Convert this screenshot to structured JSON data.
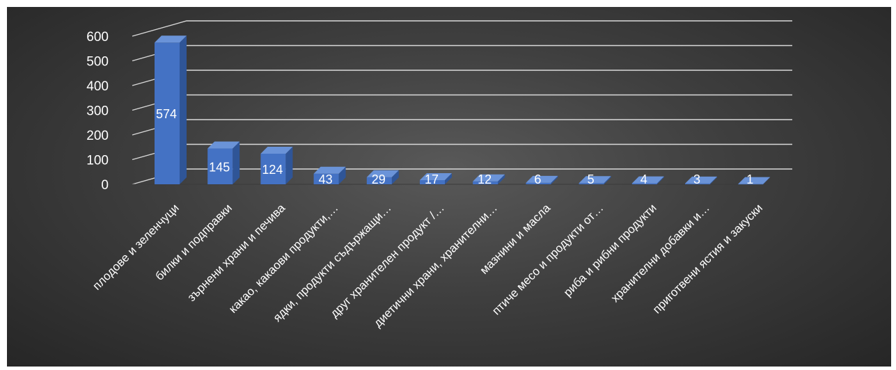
{
  "chart_data": {
    "type": "bar",
    "style": "3d-column",
    "categories": [
      "плодове и зеленчуци",
      "билки и подправки",
      "зърнени храни и печива",
      "какао, какаови продукти,…",
      "ядки, продукти съдържащи…",
      "друг хранителен продукт /…",
      "диетични храни, хранителни…",
      "мазнини и масла",
      "птиче месо и продукти от…",
      "риба и рибни продукти",
      "хранителни добавки и…",
      "приготвени ястия и закуски"
    ],
    "values": [
      574,
      145,
      124,
      43,
      29,
      17,
      12,
      6,
      5,
      4,
      3,
      1
    ],
    "ylim": [
      0,
      600
    ],
    "yticks": [
      0,
      100,
      200,
      300,
      400,
      500,
      600
    ],
    "grid": true,
    "legend": "none",
    "colors": {
      "bar_front": "#4472c4",
      "bar_side": "#2f5597",
      "bar_top": "#6a93d8",
      "grid": "#d9d9d9",
      "text": "#ffffff",
      "background": "#404040"
    }
  }
}
